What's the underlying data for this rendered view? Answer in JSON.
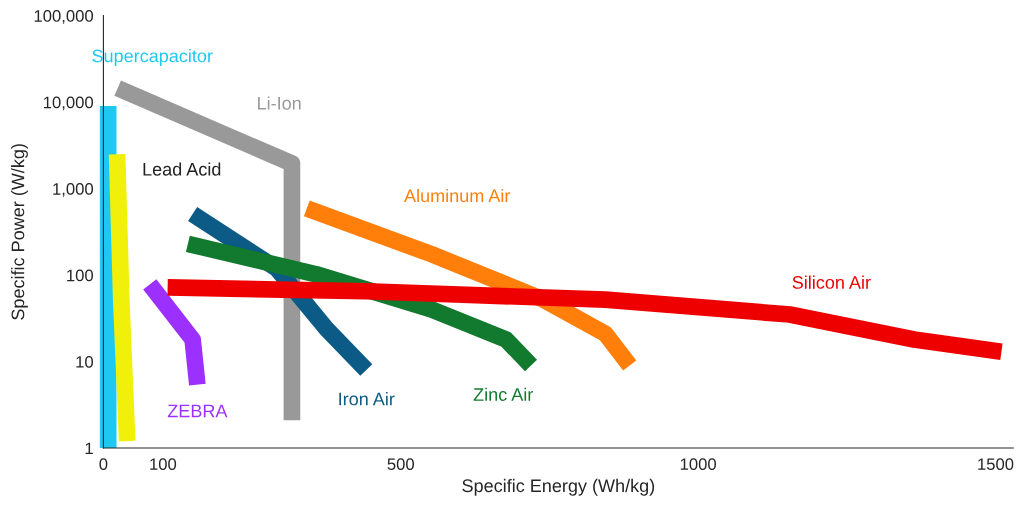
{
  "chart_data": {
    "type": "line",
    "xlabel": "Specific Energy (Wh/kg)",
    "ylabel": "Specific Power (W/kg)",
    "log": "y",
    "xlim": [
      0,
      1530
    ],
    "ylim": [
      1,
      100000
    ],
    "xticks": [
      0,
      100,
      500,
      1000,
      1500
    ],
    "yticks": [
      1,
      10,
      100,
      {
        "value": 1000,
        "label": "1,000"
      },
      {
        "value": 10000,
        "label": "10,000"
      },
      {
        "value": 100000,
        "label": "100,000"
      }
    ],
    "grid": false,
    "legend": false,
    "marker": "none",
    "line_style": "solid",
    "series": [
      {
        "name": "Supercapacitor",
        "color": "#1ec8f0",
        "x": [
          8,
          8
        ],
        "values": [
          1,
          9000
        ]
      },
      {
        "name": "Lead Acid",
        "color": "#f0f00a",
        "x": [
          23,
          30,
          40
        ],
        "values": [
          2500,
          52,
          1.2
        ]
      },
      {
        "name": "Li-Ion",
        "color": "#999999",
        "x": [
          24,
          317,
          317
        ],
        "values": [
          14500,
          1950,
          2.1
        ]
      },
      {
        "name": "ZEBRA",
        "color": "#9b30ff",
        "x": [
          78,
          150,
          158
        ],
        "values": [
          78,
          18,
          5.4
        ]
      },
      {
        "name": "Iron Air",
        "color": "#0b5b86",
        "x": [
          150,
          292,
          375,
          442
        ],
        "values": [
          510,
          118,
          24,
          8
        ]
      },
      {
        "name": "Zinc Air",
        "color": "#127a2e",
        "x": [
          142,
          358,
          552,
          677,
          719
        ],
        "values": [
          230,
          102,
          40,
          18,
          9
        ]
      },
      {
        "name": "Aluminum Air",
        "color": "#ff7f0a",
        "x": [
          342,
          552,
          740,
          844,
          885
        ],
        "values": [
          590,
          174,
          52,
          21,
          9
        ]
      },
      {
        "name": "Silicon Air",
        "color": "#ee0000",
        "x": [
          108,
          442,
          844,
          1154,
          1363,
          1510
        ],
        "values": [
          72,
          65,
          52,
          35,
          18,
          13
        ]
      }
    ]
  }
}
